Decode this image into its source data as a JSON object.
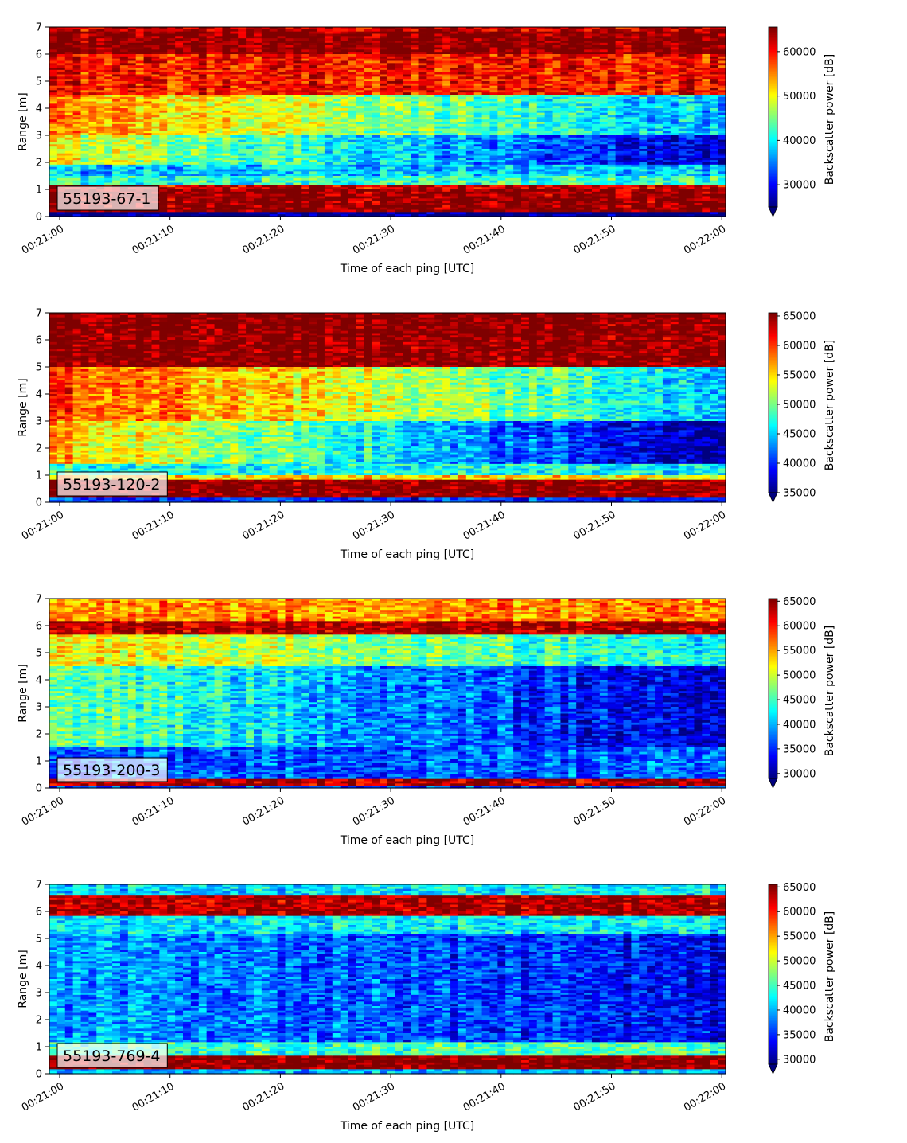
{
  "colormap": [
    "#00007f",
    "#0000ff",
    "#007fff",
    "#00ffff",
    "#7fff7f",
    "#ffff00",
    "#ff7f00",
    "#ff0000",
    "#7f0000"
  ],
  "chart_data": [
    {
      "type": "heatmap",
      "label": "55193-67-1",
      "xlabel": "Time of each ping [UTC]",
      "ylabel": "Range [m]",
      "colorbar_label": "Backscatter power [dB]",
      "x_ticks": [
        "00:21:00",
        "00:21:10",
        "00:21:20",
        "00:21:30",
        "00:21:40",
        "00:21:50",
        "00:22:00"
      ],
      "y_ticks": [
        "0",
        "1",
        "2",
        "3",
        "4",
        "5",
        "6",
        "7"
      ],
      "ylim": [
        0,
        7
      ],
      "color_range": [
        25000,
        65535
      ],
      "colorbar_ticks": [
        "30000",
        "40000",
        "50000",
        "60000"
      ],
      "colorbar_tick_values": [
        30000,
        40000,
        50000,
        60000
      ],
      "profile": [
        [
          0,
          0.15,
          25000
        ],
        [
          0.15,
          0.5,
          65535
        ],
        [
          0.5,
          1.0,
          65000
        ],
        [
          1.0,
          1.15,
          62000
        ],
        [
          1.15,
          1.5,
          42000
        ],
        [
          1.5,
          1.9,
          38000
        ],
        [
          1.9,
          3.0,
          "mid"
        ],
        [
          3.0,
          4.5,
          "upper"
        ],
        [
          4.5,
          6.0,
          60000
        ],
        [
          6.0,
          6.8,
          65535
        ],
        [
          6.8,
          7.0,
          63000
        ]
      ],
      "mid_start": 50000,
      "mid_end": 28000,
      "upper_start": 55000,
      "upper_end": 37000
    },
    {
      "type": "heatmap",
      "label": "55193-120-2",
      "xlabel": "Time of each ping [UTC]",
      "ylabel": "Range [m]",
      "colorbar_label": "Backscatter power [dB]",
      "x_ticks": [
        "00:21:00",
        "00:21:10",
        "00:21:20",
        "00:21:30",
        "00:21:40",
        "00:21:50",
        "00:22:00"
      ],
      "y_ticks": [
        "0",
        "1",
        "2",
        "3",
        "4",
        "5",
        "6",
        "7"
      ],
      "ylim": [
        0,
        7
      ],
      "color_range": [
        35000,
        65535
      ],
      "colorbar_ticks": [
        "35000",
        "40000",
        "45000",
        "50000",
        "55000",
        "60000",
        "65000"
      ],
      "colorbar_tick_values": [
        35000,
        40000,
        45000,
        50000,
        55000,
        60000,
        65000
      ],
      "profile": [
        [
          0,
          0.2,
          40000
        ],
        [
          0.2,
          0.8,
          65535
        ],
        [
          0.8,
          1.0,
          55000
        ],
        [
          1.0,
          1.4,
          47000
        ],
        [
          1.4,
          3.0,
          "mid"
        ],
        [
          3.0,
          5.0,
          "upper"
        ],
        [
          5.0,
          7.0,
          65535
        ]
      ],
      "mid_start": 56000,
      "mid_end": 36000,
      "upper_start": 60000,
      "upper_end": 45000
    },
    {
      "type": "heatmap",
      "label": "55193-200-3",
      "xlabel": "Time of each ping [UTC]",
      "ylabel": "Range [m]",
      "colorbar_label": "Backscatter power [dB]",
      "x_ticks": [
        "00:21:00",
        "00:21:10",
        "00:21:20",
        "00:21:30",
        "00:21:40",
        "00:21:50",
        "00:22:00"
      ],
      "y_ticks": [
        "0",
        "1",
        "2",
        "3",
        "4",
        "5",
        "6",
        "7"
      ],
      "ylim": [
        0,
        7
      ],
      "color_range": [
        29000,
        65535
      ],
      "colorbar_ticks": [
        "30000",
        "35000",
        "40000",
        "45000",
        "50000",
        "55000",
        "60000",
        "65000"
      ],
      "colorbar_tick_values": [
        30000,
        35000,
        40000,
        45000,
        50000,
        55000,
        60000,
        65000
      ],
      "profile": [
        [
          0,
          0.1,
          36000
        ],
        [
          0.1,
          0.35,
          64000
        ],
        [
          0.35,
          1.5,
          37000
        ],
        [
          1.5,
          4.5,
          "mid"
        ],
        [
          4.5,
          5.7,
          "upper"
        ],
        [
          5.7,
          6.2,
          64000
        ],
        [
          6.2,
          7.0,
          56000
        ]
      ],
      "mid_start": 47000,
      "mid_end": 31000,
      "upper_start": 53000,
      "upper_end": 42000
    },
    {
      "type": "heatmap",
      "label": "55193-769-4",
      "xlabel": "Time of each ping [UTC]",
      "ylabel": "Range [m]",
      "colorbar_label": "Backscatter power [dB]",
      "x_ticks": [
        "00:21:00",
        "00:21:10",
        "00:21:20",
        "00:21:30",
        "00:21:40",
        "00:21:50",
        "00:22:00"
      ],
      "y_ticks": [
        "0",
        "1",
        "2",
        "3",
        "4",
        "5",
        "6",
        "7"
      ],
      "ylim": [
        0,
        7
      ],
      "color_range": [
        29000,
        65535
      ],
      "colorbar_ticks": [
        "30000",
        "35000",
        "40000",
        "45000",
        "50000",
        "55000",
        "60000",
        "65000"
      ],
      "colorbar_tick_values": [
        30000,
        35000,
        40000,
        45000,
        50000,
        55000,
        60000,
        65000
      ],
      "profile": [
        [
          0,
          0.2,
          40000
        ],
        [
          0.2,
          0.65,
          65535
        ],
        [
          0.65,
          1.2,
          45000
        ],
        [
          1.2,
          5.2,
          "mid"
        ],
        [
          5.2,
          5.8,
          42000
        ],
        [
          5.8,
          6.6,
          64000
        ],
        [
          6.6,
          7.0,
          42000
        ]
      ],
      "mid_start": 40000,
      "mid_end": 33000,
      "upper_start": 40000,
      "upper_end": 33000
    }
  ]
}
